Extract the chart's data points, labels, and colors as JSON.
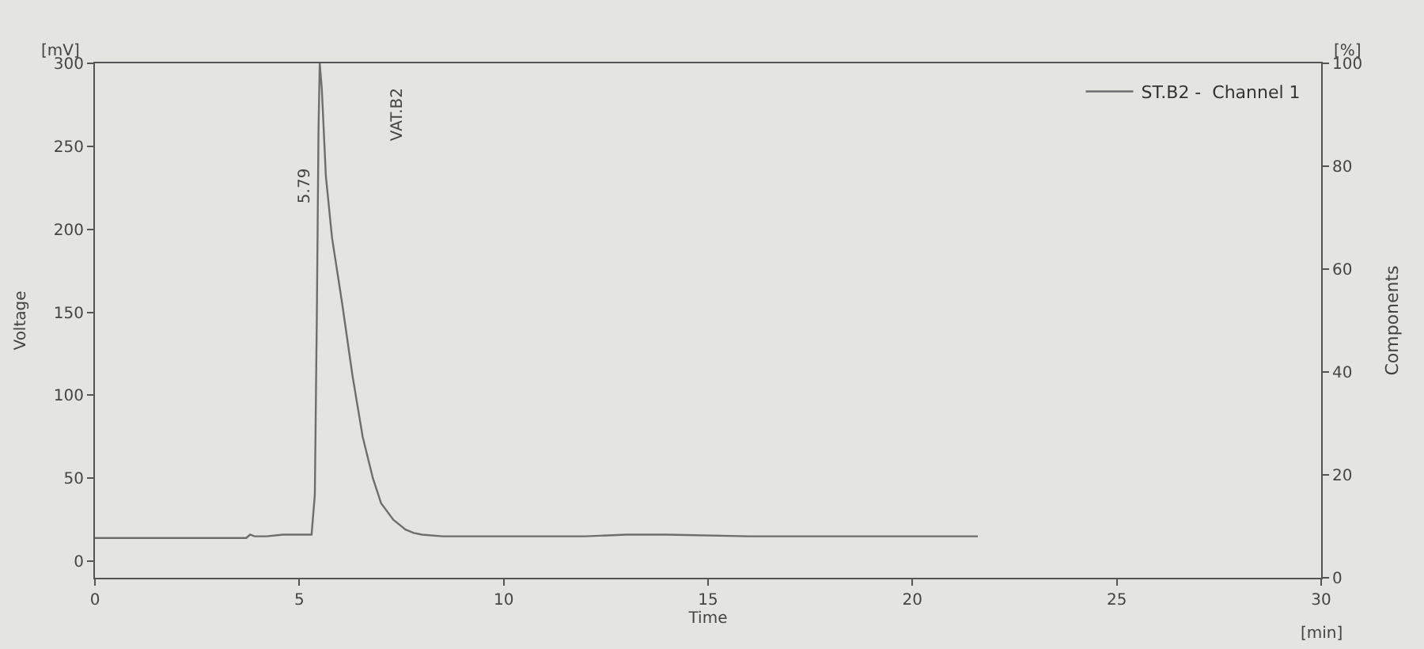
{
  "chart_data": {
    "type": "line",
    "xlabel": "Time",
    "ylabel": "Voltage",
    "y2label": "Components",
    "x": [
      0,
      1,
      2,
      3,
      3.7,
      3.8,
      3.9,
      4.2,
      4.6,
      5.0,
      5.3,
      5.38,
      5.43,
      5.47,
      5.5,
      5.55,
      5.65,
      5.8,
      6.05,
      6.3,
      6.55,
      6.8,
      7.0,
      7.3,
      7.6,
      7.8,
      8.0,
      8.5,
      10,
      12,
      13,
      14,
      16,
      18,
      20,
      21.6
    ],
    "series": [
      {
        "name": "ST.B2 -  Channel 1",
        "color": "#6e6e6e",
        "values": [
          14,
          14,
          14,
          14,
          14,
          16,
          15,
          15,
          16,
          16,
          16,
          40,
          150,
          260,
          300,
          285,
          232,
          195,
          155,
          112,
          75,
          50,
          35,
          25,
          19,
          17,
          16,
          15,
          15,
          15,
          16,
          16,
          15,
          15,
          15,
          15
        ]
      }
    ],
    "xlim": [
      0,
      30
    ],
    "xticks": [
      0,
      5,
      10,
      15,
      20,
      25,
      30
    ],
    "ylim": [
      -10,
      300
    ],
    "yticks": [
      0,
      50,
      100,
      150,
      200,
      250,
      300
    ],
    "y2lim": [
      0,
      100
    ],
    "y2ticks": [
      0,
      20,
      40,
      60,
      80,
      100
    ],
    "annotations": [
      "5.79",
      "VAT.B2",
      "[mV]",
      "[%]",
      "[min]"
    ],
    "legend": "top right",
    "grid": false,
    "marker": "none",
    "line_style": "solid"
  }
}
